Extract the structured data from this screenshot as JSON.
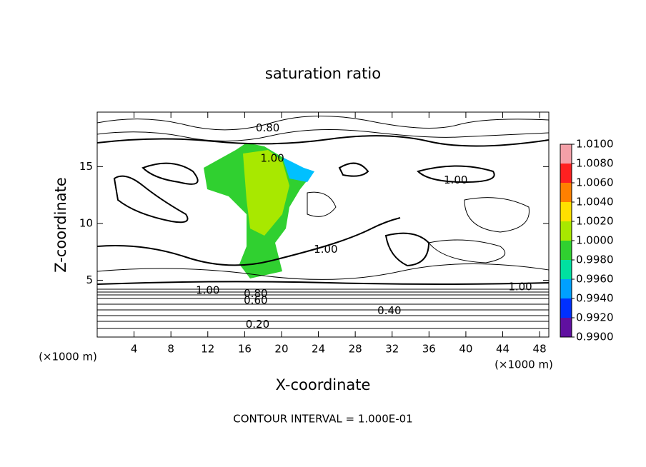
{
  "chart_data": {
    "type": "contour",
    "title": "saturation ratio",
    "xlabel": "X-coordinate",
    "ylabel": "Z-coordinate",
    "x_unit": "(×1000 m)",
    "y_unit": "(×1000 m)",
    "footer": "CONTOUR INTERVAL = 1.000E-01",
    "xlim": [
      0,
      49
    ],
    "ylim": [
      0,
      19.8
    ],
    "xticks": [
      4,
      8,
      12,
      16,
      20,
      24,
      28,
      32,
      36,
      40,
      44,
      48
    ],
    "yticks": [
      5,
      10,
      15
    ],
    "colorbar": {
      "levels": [
        {
          "value": 1.01,
          "label": "1.0100"
        },
        {
          "value": 1.008,
          "label": "1.0080"
        },
        {
          "value": 1.006,
          "label": "1.0060"
        },
        {
          "value": 1.004,
          "label": "1.0040"
        },
        {
          "value": 1.002,
          "label": "1.0020"
        },
        {
          "value": 1.0,
          "label": "1.0000"
        },
        {
          "value": 0.998,
          "label": "0.9980"
        },
        {
          "value": 0.996,
          "label": "0.9960"
        },
        {
          "value": 0.994,
          "label": "0.9940"
        },
        {
          "value": 0.992,
          "label": "0.9920"
        },
        {
          "value": 0.99,
          "label": "0.9900"
        }
      ],
      "colors": [
        "#f4a0a8",
        "#ff2020",
        "#ff8000",
        "#ffe000",
        "#a8e800",
        "#30d030",
        "#00e0a0",
        "#00a0ff",
        "#0030ff",
        "#6010a0"
      ]
    },
    "contour_labels": [
      {
        "text": "0.80",
        "x": 18.5,
        "y": 18.4
      },
      {
        "text": "1.00",
        "x": 19.0,
        "y": 15.7
      },
      {
        "text": "1.00",
        "x": 38.9,
        "y": 13.8
      },
      {
        "text": "1.00",
        "x": 24.8,
        "y": 7.7
      },
      {
        "text": "1.00",
        "x": 12.0,
        "y": 4.1
      },
      {
        "text": "0.80",
        "x": 17.2,
        "y": 3.8
      },
      {
        "text": "0.60",
        "x": 17.2,
        "y": 3.2
      },
      {
        "text": "0.40",
        "x": 31.7,
        "y": 2.3
      },
      {
        "text": "0.20",
        "x": 17.4,
        "y": 1.1
      },
      {
        "text": "1.00",
        "x": 45.9,
        "y": 4.4
      }
    ]
  }
}
